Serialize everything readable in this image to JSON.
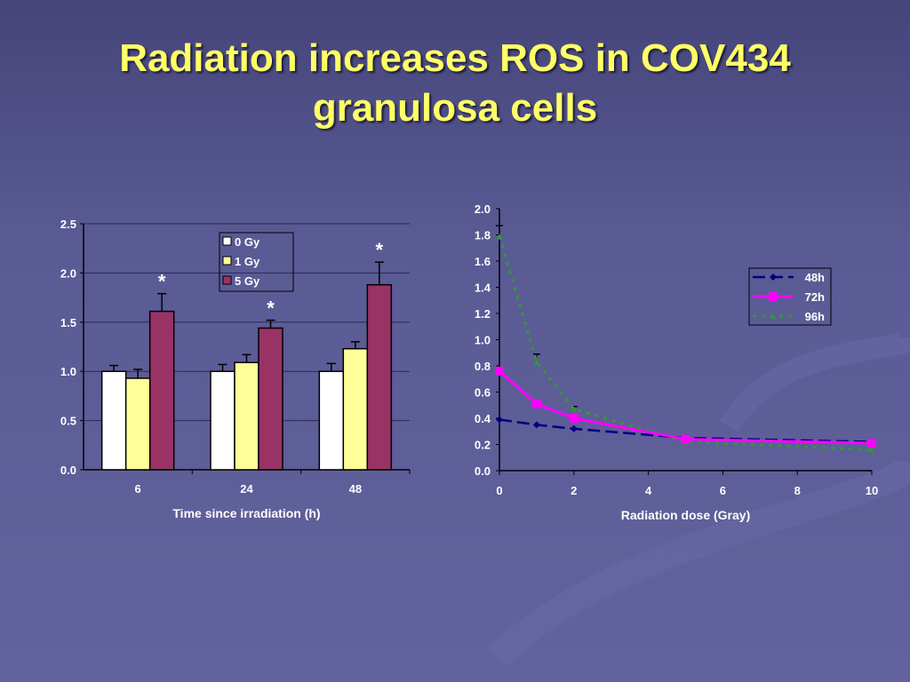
{
  "title_line1": "Radiation increases ROS in COV434",
  "title_line2": "granulosa cells",
  "chart_data": [
    {
      "type": "bar",
      "title": "",
      "xlabel": "Time since irradiation (h)",
      "ylabel": "",
      "ylim": [
        0,
        2.5
      ],
      "yticks": [
        "0.0",
        "0.5",
        "1.0",
        "1.5",
        "2.0",
        "2.5"
      ],
      "categories": [
        "6",
        "24",
        "48"
      ],
      "series": [
        {
          "name": "0 Gy",
          "color": "#ffffff",
          "values": [
            1.0,
            1.0,
            1.0
          ],
          "errors": [
            0.06,
            0.07,
            0.08
          ]
        },
        {
          "name": "1 Gy",
          "color": "#ffff99",
          "values": [
            0.93,
            1.09,
            1.23
          ],
          "errors": [
            0.09,
            0.08,
            0.07
          ]
        },
        {
          "name": "5 Gy",
          "color": "#993366",
          "values": [
            1.61,
            1.44,
            1.88
          ],
          "errors": [
            0.18,
            0.08,
            0.23
          ]
        }
      ],
      "annotations": [
        "*",
        "*",
        "*"
      ],
      "grid": true,
      "legend": "top-center"
    },
    {
      "type": "line",
      "title": "",
      "xlabel": "Radiation dose (Gray)",
      "ylabel": "",
      "xlim": [
        0,
        10
      ],
      "ylim": [
        0,
        2.0
      ],
      "xticks": [
        "0",
        "2",
        "4",
        "6",
        "8",
        "10"
      ],
      "yticks": [
        "0.0",
        "0.2",
        "0.4",
        "0.6",
        "0.8",
        "1.0",
        "1.2",
        "1.4",
        "1.6",
        "1.8",
        "2.0"
      ],
      "x": [
        0,
        1,
        2,
        5,
        10
      ],
      "series": [
        {
          "name": "48h",
          "color": "#000080",
          "values": [
            0.39,
            0.35,
            0.32,
            0.25,
            0.22
          ]
        },
        {
          "name": "72h",
          "color": "#ff00ff",
          "values": [
            0.76,
            0.51,
            0.4,
            0.24,
            0.21
          ]
        },
        {
          "name": "96h",
          "color": "#339933",
          "values": [
            1.79,
            0.83,
            0.47,
            0.22,
            0.16
          ]
        }
      ],
      "grid": false,
      "legend": "right"
    }
  ]
}
